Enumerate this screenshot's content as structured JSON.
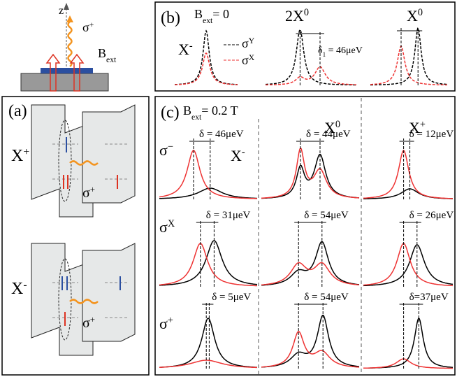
{
  "top": {
    "axis": "z",
    "photon": {
      "base": "σ",
      "sup": "+"
    },
    "field": {
      "base": "B",
      "sub": "ext"
    }
  },
  "panel_a": {
    "label": "(a)",
    "upper": {
      "state": {
        "base": "X",
        "sup": "+"
      },
      "photon": {
        "base": "σ",
        "sup": "+"
      }
    },
    "lower": {
      "state": {
        "base": "X",
        "sup": "-"
      },
      "photon": {
        "base": "σ",
        "sup": "+"
      }
    }
  },
  "panel_b": {
    "label": "(b)",
    "field": {
      "base": "B",
      "sub": "ext",
      "rest": "= 0"
    },
    "states": [
      {
        "base": "X",
        "sup": "-"
      },
      {
        "base": "2X",
        "sup": "0"
      },
      {
        "base": "X",
        "sup": "0"
      }
    ],
    "legend": [
      {
        "base": "σ",
        "sup": "Y"
      },
      {
        "base": "σ",
        "sup": "X"
      }
    ],
    "splitting": {
      "base": "δ",
      "sub": "1",
      "rest": " = 46μeV"
    }
  },
  "panel_c": {
    "label": "(c)",
    "field": {
      "base": "B",
      "sub": "ext",
      "rest": "= 0.2 T"
    },
    "states": [
      {
        "base": "X",
        "sup": "-"
      },
      {
        "base": "X",
        "sup": "0"
      },
      {
        "base": "X",
        "sup": "+"
      }
    ],
    "rows": [
      {
        "base": "σ",
        "sup": "−"
      },
      {
        "base": "σ",
        "sup": "X"
      },
      {
        "base": "σ",
        "sup": "+"
      }
    ],
    "splittings": [
      [
        "δ = 46μeV",
        "δ = 44μeV",
        "δ = 12μeV"
      ],
      [
        "δ = 31μeV",
        "δ = 54μeV",
        "δ = 26μeV"
      ],
      [
        "δ = 5μeV",
        "δ = 54μeV",
        "δ=37μeV"
      ]
    ]
  }
}
